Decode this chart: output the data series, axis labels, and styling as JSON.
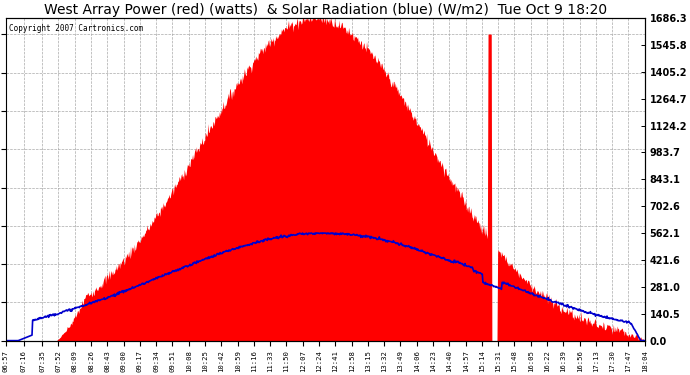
{
  "title": "West Array Power (red) (watts)  & Solar Radiation (blue) (W/m2)  Tue Oct 9 18:20",
  "copyright": "Copyright 2007 Cartronics.com",
  "ylabel_right_values": [
    0.0,
    140.5,
    281.0,
    421.6,
    562.1,
    702.6,
    843.1,
    983.7,
    1124.2,
    1264.7,
    1405.2,
    1545.8,
    1686.3
  ],
  "ymax": 1686.3,
  "ymin": 0.0,
  "background_color": "#ffffff",
  "plot_bg_color": "#ffffff",
  "fill_color": "#ff0000",
  "line_color": "#0000cc",
  "title_fontsize": 10,
  "tick_labels": [
    "06:57",
    "07:16",
    "07:35",
    "07:52",
    "08:09",
    "08:26",
    "08:43",
    "09:00",
    "09:17",
    "09:34",
    "09:51",
    "10:08",
    "10:25",
    "10:42",
    "10:59",
    "11:16",
    "11:33",
    "11:50",
    "12:07",
    "12:24",
    "12:41",
    "12:58",
    "13:15",
    "13:32",
    "13:49",
    "14:06",
    "14:23",
    "14:40",
    "14:57",
    "15:14",
    "15:31",
    "15:48",
    "16:05",
    "16:22",
    "16:39",
    "16:56",
    "17:13",
    "17:30",
    "17:47",
    "18:04"
  ]
}
